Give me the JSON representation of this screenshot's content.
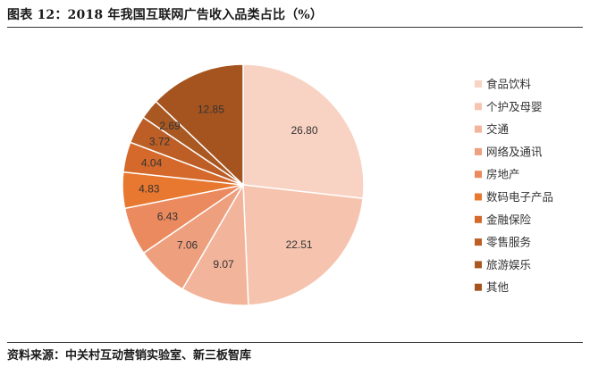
{
  "figure": {
    "title": "图表 12：2018 年我国互联网广告收入品类占比（%）",
    "source": "资料来源：中关村互动营销实验室、新三板智库"
  },
  "chart_data": {
    "type": "pie",
    "title": "",
    "categories": [
      "食品饮料",
      "个护及母婴",
      "交通",
      "网络及通讯",
      "房地产",
      "数码电子产品",
      "金融保险",
      "零售服务",
      "旅游娱乐",
      "其他"
    ],
    "values": [
      26.8,
      22.51,
      9.07,
      7.06,
      6.43,
      4.83,
      4.04,
      3.72,
      2.69,
      12.85
    ],
    "data_labels": [
      "26.80",
      "22.51",
      "9.07",
      "7.06",
      "6.43",
      "4.83",
      "4.04",
      "3.72",
      "2.69",
      "12.85"
    ],
    "colors": [
      "#F8D3C3",
      "#F6C4AE",
      "#F2B49A",
      "#EE9F7E",
      "#EB8A5E",
      "#E8772F",
      "#D4692B",
      "#BC5E26",
      "#A95822",
      "#A5541F"
    ],
    "legend_position": "right",
    "start_angle_deg": 90,
    "direction": "clockwise"
  }
}
